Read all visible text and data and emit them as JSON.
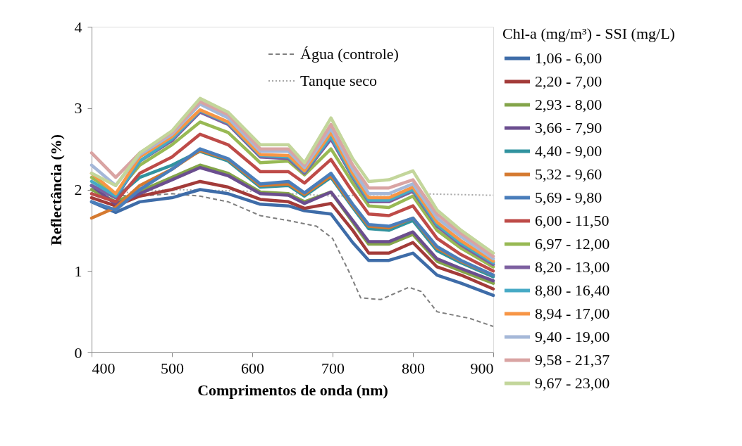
{
  "chart_data": {
    "type": "line",
    "xlabel": "Comprimentos de onda (nm)",
    "ylabel": "Reflectância (%)",
    "legend_title": "Chl-a (mg/m³) - SSI (mg/L)",
    "xlim": [
      400,
      900
    ],
    "xticks": [
      400,
      500,
      600,
      700,
      800,
      900
    ],
    "ylim": [
      0,
      4
    ],
    "yticks": [
      0,
      1,
      2,
      3,
      4
    ],
    "grid": false,
    "legend": "right",
    "marker": "none",
    "x": [
      400,
      430,
      460,
      500,
      535,
      570,
      610,
      645,
      665,
      698,
      725,
      745,
      770,
      800,
      830,
      860,
      900
    ],
    "series": [
      {
        "name": "Água (controle)",
        "color": "#7f7f7f",
        "line_style": "dashed",
        "x": [
          420,
          460,
          500,
          535,
          570,
          610,
          645,
          680,
          700,
          720,
          735,
          760,
          795,
          810,
          830,
          870,
          900
        ],
        "values": [
          1.93,
          1.92,
          1.95,
          1.92,
          1.85,
          1.68,
          1.62,
          1.55,
          1.4,
          1.0,
          0.67,
          0.65,
          0.8,
          0.75,
          0.5,
          0.42,
          0.32
        ]
      },
      {
        "name": "Tanque seco",
        "color": "#a6a6a6",
        "line_style": "dotted",
        "x": [
          400,
          420,
          500,
          600,
          700,
          800,
          900
        ],
        "values": [
          1.97,
          1.95,
          2.0,
          1.98,
          1.92,
          1.95,
          1.93
        ]
      },
      {
        "name": "1,06 - 6,00",
        "color": "#3e6ca8",
        "values": [
          1.85,
          1.72,
          1.85,
          1.9,
          2.0,
          1.95,
          1.82,
          1.8,
          1.74,
          1.7,
          1.35,
          1.13,
          1.13,
          1.22,
          0.95,
          0.85,
          0.7
        ]
      },
      {
        "name": "2,20 - 7,00",
        "color": "#a33b39",
        "values": [
          1.9,
          1.8,
          1.92,
          2.0,
          2.1,
          2.03,
          1.88,
          1.85,
          1.77,
          1.83,
          1.5,
          1.22,
          1.22,
          1.35,
          1.05,
          0.95,
          0.78
        ]
      },
      {
        "name": "2,93 - 8,00",
        "color": "#84a54a",
        "values": [
          2.0,
          1.85,
          1.98,
          2.15,
          2.3,
          2.2,
          1.97,
          1.95,
          1.85,
          1.97,
          1.6,
          1.33,
          1.33,
          1.45,
          1.12,
          1.0,
          0.85
        ]
      },
      {
        "name": "3,66 - 7,90",
        "color": "#6b4e8f",
        "values": [
          2.05,
          1.82,
          1.95,
          2.12,
          2.27,
          2.17,
          1.95,
          1.93,
          1.83,
          1.97,
          1.62,
          1.36,
          1.36,
          1.48,
          1.15,
          1.03,
          0.88
        ]
      },
      {
        "name": "4,40 - 9,00",
        "color": "#31939f",
        "values": [
          2.05,
          1.9,
          2.15,
          2.3,
          2.47,
          2.35,
          2.03,
          2.05,
          1.92,
          2.15,
          1.78,
          1.52,
          1.5,
          1.62,
          1.25,
          1.1,
          0.93
        ]
      },
      {
        "name": "5,32 - 9,60",
        "color": "#d57a30",
        "values": [
          1.65,
          1.78,
          2.05,
          2.25,
          2.48,
          2.37,
          2.05,
          2.07,
          1.94,
          2.17,
          1.8,
          1.55,
          1.53,
          1.65,
          1.28,
          1.12,
          0.95
        ]
      },
      {
        "name": "5,69 - 9,80",
        "color": "#4a7ebb",
        "values": [
          1.85,
          1.75,
          2.0,
          2.25,
          2.5,
          2.38,
          2.07,
          2.1,
          1.96,
          2.2,
          1.82,
          1.57,
          1.55,
          1.65,
          1.3,
          1.13,
          0.95
        ]
      },
      {
        "name": "6,00 - 11,50",
        "color": "#be4b48",
        "values": [
          1.95,
          1.85,
          2.2,
          2.4,
          2.68,
          2.55,
          2.22,
          2.22,
          2.08,
          2.37,
          1.97,
          1.7,
          1.68,
          1.8,
          1.4,
          1.2,
          1.0
        ]
      },
      {
        "name": "6,97 - 12,00",
        "color": "#98b954",
        "values": [
          2.15,
          1.95,
          2.3,
          2.55,
          2.83,
          2.7,
          2.33,
          2.35,
          2.18,
          2.5,
          2.08,
          1.8,
          1.78,
          1.92,
          1.5,
          1.28,
          1.05
        ]
      },
      {
        "name": "8,20 - 13,00",
        "color": "#7d60a0",
        "values": [
          2.05,
          1.9,
          2.35,
          2.6,
          2.95,
          2.8,
          2.4,
          2.38,
          2.2,
          2.62,
          2.15,
          1.85,
          1.85,
          1.98,
          1.55,
          1.32,
          1.08
        ]
      },
      {
        "name": "8,80 - 16,40",
        "color": "#46aac5",
        "values": [
          2.1,
          1.92,
          2.35,
          2.62,
          2.97,
          2.82,
          2.42,
          2.4,
          2.22,
          2.65,
          2.17,
          1.87,
          1.87,
          2.0,
          1.57,
          1.34,
          1.1
        ]
      },
      {
        "name": "8,94 - 17,00",
        "color": "#f79646",
        "values": [
          2.2,
          1.95,
          2.4,
          2.65,
          2.98,
          2.83,
          2.43,
          2.42,
          2.23,
          2.7,
          2.2,
          1.9,
          1.9,
          2.03,
          1.6,
          1.37,
          1.12
        ]
      },
      {
        "name": "9,40 - 19,00",
        "color": "#a5b8d8",
        "values": [
          2.3,
          2.05,
          2.43,
          2.68,
          3.05,
          2.88,
          2.47,
          2.47,
          2.27,
          2.75,
          2.25,
          1.95,
          1.95,
          2.07,
          1.65,
          1.42,
          1.15
        ]
      },
      {
        "name": "9,58 - 21,37",
        "color": "#d9a4a3",
        "values": [
          2.45,
          2.15,
          2.45,
          2.7,
          3.08,
          2.92,
          2.5,
          2.5,
          2.3,
          2.8,
          2.3,
          2.02,
          2.02,
          2.12,
          1.7,
          1.46,
          1.18
        ]
      },
      {
        "name": "9,67 - 23,00",
        "color": "#c3d69b",
        "values": [
          2.2,
          2.05,
          2.45,
          2.72,
          3.12,
          2.95,
          2.55,
          2.55,
          2.33,
          2.88,
          2.38,
          2.1,
          2.12,
          2.23,
          1.75,
          1.5,
          1.22
        ]
      }
    ]
  }
}
